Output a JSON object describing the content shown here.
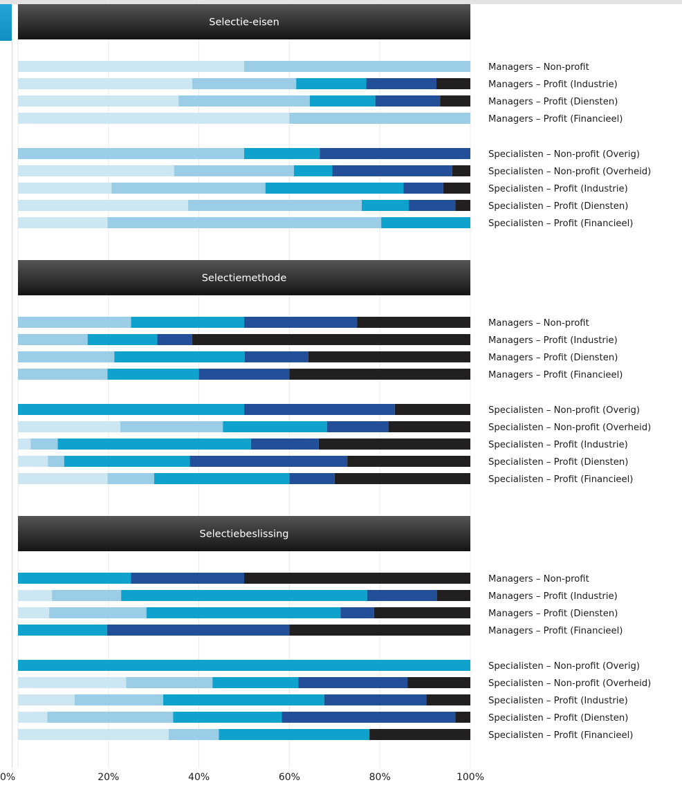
{
  "chart_data": {
    "type": "bar",
    "orientation": "horizontal",
    "stacked": true,
    "xlim": [
      0,
      100
    ],
    "x_ticks": [
      "0%",
      "20%",
      "40%",
      "60%",
      "80%",
      "100%"
    ],
    "grid": true,
    "colors": [
      "#cde7f2",
      "#9bcde6",
      "#0ea2cd",
      "#234f98",
      "#221f20"
    ],
    "panels": [
      {
        "title": "Selectie-eisen",
        "groups": [
          {
            "rows": [
              {
                "label": "Managers – Non-profit",
                "values": [
                  50,
                  50,
                  0,
                  0,
                  0
                ]
              },
              {
                "label": "Managers – Profit (Industrie)",
                "values": [
                  38.5,
                  23,
                  15.5,
                  15.5,
                  7.5
                ]
              },
              {
                "label": "Managers – Profit (Diensten)",
                "values": [
                  35.5,
                  29,
                  14.5,
                  14.3,
                  6.7
                ]
              },
              {
                "label": "Managers – Profit (Financieel)",
                "values": [
                  60,
                  40,
                  0,
                  0,
                  0
                ]
              }
            ]
          },
          {
            "rows": [
              {
                "label": "Specialisten – Non-profit (Overig)",
                "values": [
                  0,
                  50,
                  16.7,
                  33.3,
                  0
                ]
              },
              {
                "label": "Specialisten – Non-profit (Overheid)",
                "values": [
                  34.5,
                  26.5,
                  8.5,
                  26.5,
                  4
                ]
              },
              {
                "label": "Specialisten – Profit (Industrie)",
                "values": [
                  20.7,
                  34,
                  30.5,
                  8.8,
                  6
                ]
              },
              {
                "label": "Specialisten – Profit (Diensten)",
                "values": [
                  37.6,
                  38.4,
                  10.4,
                  10.3,
                  3.3
                ]
              },
              {
                "label": "Specialisten – Profit (Financieel)",
                "values": [
                  19.8,
                  60.5,
                  19.7,
                  0,
                  0
                ]
              }
            ]
          }
        ]
      },
      {
        "title": "Selectiemethode",
        "groups": [
          {
            "rows": [
              {
                "label": "Managers – Non-profit",
                "values": [
                  0,
                  25,
                  25,
                  25,
                  25
                ]
              },
              {
                "label": "Managers – Profit (Industrie)",
                "values": [
                  0,
                  15.4,
                  15.4,
                  7.7,
                  61.5
                ]
              },
              {
                "label": "Managers – Profit (Diensten)",
                "values": [
                  0,
                  21.3,
                  28.8,
                  14.1,
                  35.8
                ]
              },
              {
                "label": "Managers – Profit (Financieel)",
                "values": [
                  0,
                  19.8,
                  20.2,
                  20,
                  40
                ]
              }
            ]
          },
          {
            "rows": [
              {
                "label": "Specialisten – Non-profit (Overig)",
                "values": [
                  0,
                  0,
                  50,
                  33.3,
                  16.7
                ]
              },
              {
                "label": "Specialisten – Non-profit (Overheid)",
                "values": [
                  22.6,
                  22.7,
                  23,
                  13.6,
                  18.1
                ]
              },
              {
                "label": "Specialisten – Profit (Industrie)",
                "values": [
                  2.8,
                  6,
                  42.7,
                  15,
                  33.5
                ]
              },
              {
                "label": "Specialisten – Profit (Diensten)",
                "values": [
                  6.6,
                  3.6,
                  27.8,
                  34.8,
                  27.2
                ]
              },
              {
                "label": "Specialisten – Profit (Financieel)",
                "values": [
                  19.8,
                  10.3,
                  29.9,
                  10,
                  30
                ]
              }
            ]
          }
        ]
      },
      {
        "title": "Selectiebeslissing",
        "groups": [
          {
            "rows": [
              {
                "label": "Managers – Non-profit",
                "values": [
                  0,
                  0,
                  25,
                  25,
                  50
                ]
              },
              {
                "label": "Managers – Profit (Industrie)",
                "values": [
                  7.5,
                  15.3,
                  54.4,
                  15.4,
                  7.4
                ]
              },
              {
                "label": "Managers – Profit (Diensten)",
                "values": [
                  6.9,
                  21.5,
                  42.9,
                  7.4,
                  21.3
                ]
              },
              {
                "label": "Managers – Profit (Financieel)",
                "values": [
                  0,
                  0,
                  19.7,
                  40.3,
                  40
                ]
              }
            ]
          },
          {
            "rows": [
              {
                "label": "Specialisten – Non-profit (Overig)",
                "values": [
                  0,
                  0,
                  100,
                  0,
                  0
                ]
              },
              {
                "label": "Specialisten – Non-profit (Overheid)",
                "values": [
                  23.9,
                  19.1,
                  19,
                  24.1,
                  13.9
                ]
              },
              {
                "label": "Specialisten – Profit (Industrie)",
                "values": [
                  12.5,
                  19.6,
                  35.6,
                  22.6,
                  9.7
                ]
              },
              {
                "label": "Specialisten – Profit (Diensten)",
                "values": [
                  6.5,
                  27.8,
                  24,
                  38.4,
                  3.3
                ]
              },
              {
                "label": "Specialisten – Profit (Financieel)",
                "values": [
                  33.3,
                  11.1,
                  33.3,
                  0,
                  22.3
                ]
              }
            ]
          }
        ]
      }
    ]
  }
}
